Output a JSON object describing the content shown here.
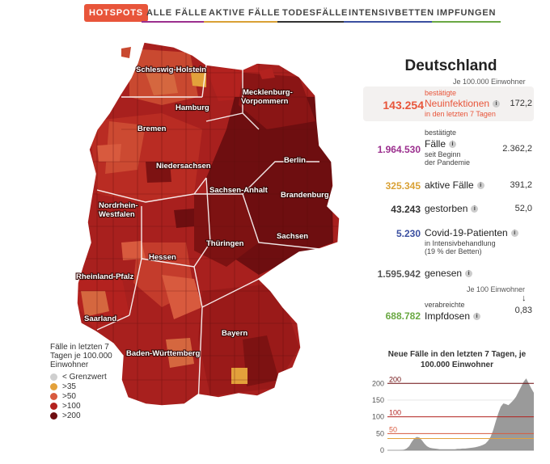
{
  "nav": [
    {
      "label": "HOTSPOTS",
      "color": "#e8553a",
      "active": true
    },
    {
      "label": "ALLE FÄLLE",
      "color": "#9b2f8e",
      "active": false
    },
    {
      "label": "AKTIVE FÄLLE",
      "color": "#d9a135",
      "active": false
    },
    {
      "label": "TODESFÄLLE",
      "color": "#333333",
      "active": false
    },
    {
      "label": "INTENSIVBETTEN",
      "color": "#3b4fa0",
      "active": false
    },
    {
      "label": "IMPFUNGEN",
      "color": "#6aa843",
      "active": false
    }
  ],
  "states": {
    "sh": "Schleswig-Holstein",
    "mv1": "Mecklenburg-",
    "mv2": "Vorpommern",
    "hh": "Hamburg",
    "hb": "Bremen",
    "ni": "Niedersachsen",
    "be": "Berlin",
    "st": "Sachsen-Anhalt",
    "bb": "Brandenburg",
    "nw1": "Nordrhein-",
    "nw2": "Westfalen",
    "sn": "Sachsen",
    "th": "Thüringen",
    "he": "Hessen",
    "rp": "Rheinland-Pfalz",
    "sl": "Saarland",
    "by": "Bayern",
    "bw": "Baden-Württemberg"
  },
  "legend": {
    "title_1": "Fälle in letzten 7",
    "title_2": "Tagen je 100.000",
    "title_3": "Einwohner",
    "items": [
      {
        "label": "< Grenzwert",
        "color": "#cfcfcf"
      },
      {
        "label": ">35",
        "color": "#e3a13b"
      },
      {
        "label": ">50",
        "color": "#d85a3e"
      },
      {
        "label": ">100",
        "color": "#b3221f"
      },
      {
        "label": ">200",
        "color": "#6e0e10"
      }
    ]
  },
  "stats": {
    "title": "Deutschland",
    "per_100k_top": "Je 100.000 Einwohner",
    "per_100_bottom": "Je 100 Einwohner",
    "arrow": "↓",
    "hotspot": {
      "value": "143.254",
      "line1": "bestätigte",
      "line2": "Neuinfektionen",
      "line3": "in den letzten 7 Tagen",
      "per": "172,2",
      "color": "#e8553a"
    },
    "cases": {
      "value": "1.964.530",
      "line1": "bestätigte",
      "line2": "Fälle",
      "line3": "seit Beginn",
      "line4": "der Pandemie",
      "per": "2.362,2",
      "color": "#9b2f8e"
    },
    "active": {
      "value": "325.345",
      "label": "aktive Fälle",
      "per": "391,2",
      "color": "#d9a135"
    },
    "deaths": {
      "value": "43.243",
      "label": "gestorben",
      "per": "52,0",
      "color": "#333333"
    },
    "icu": {
      "value": "5.230",
      "label": "Covid-19-Patienten",
      "sub1": "in Intensivbehandlung",
      "sub2": "(19 % der Betten)",
      "color": "#3b4fa0"
    },
    "recovered": {
      "value": "1.595.942",
      "label": "genesen",
      "color": "#555555"
    },
    "vacc": {
      "value": "688.782",
      "line1": "verabreichte",
      "line2": "Impfdosen",
      "per": "0,83",
      "color": "#6aa843"
    },
    "info_glyph": "i"
  },
  "chart_title_1": "Neue Fälle in den letzten 7 Tagen, je",
  "chart_title_2": "100.000 Einwohner",
  "chart_data": {
    "type": "area",
    "title": "Neue Fälle in den letzten 7 Tagen, je 100.000 Einwohner",
    "ylim": [
      0,
      220
    ],
    "yticks": [
      "0",
      "50",
      "100",
      "150",
      "200"
    ],
    "reference_lines": [
      {
        "value": 200,
        "label": "200",
        "color": "#6e0e10"
      },
      {
        "value": 100,
        "label": "100",
        "color": "#b3221f"
      },
      {
        "value": 50,
        "label": "50",
        "color": "#d85a3e"
      },
      {
        "value": 35,
        "label": "",
        "color": "#e3a13b"
      }
    ],
    "values": [
      0,
      0,
      0,
      1,
      2,
      5,
      12,
      25,
      35,
      40,
      38,
      30,
      20,
      12,
      8,
      6,
      5,
      4,
      3,
      3,
      3,
      3,
      3,
      3,
      3,
      4,
      4,
      5,
      5,
      6,
      7,
      8,
      9,
      11,
      13,
      16,
      20,
      28,
      40,
      60,
      85,
      110,
      130,
      140,
      138,
      135,
      142,
      150,
      160,
      175,
      190,
      205,
      215,
      200,
      185,
      172
    ],
    "color": "#9a9a9a"
  }
}
